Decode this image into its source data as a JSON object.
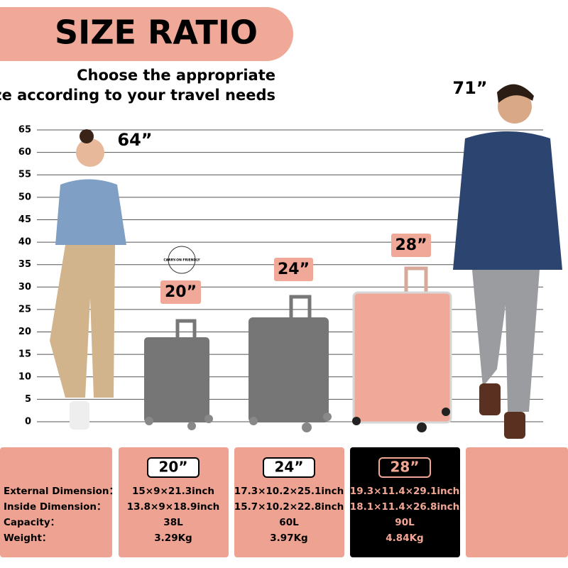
{
  "header": {
    "title": "SIZE RATIO",
    "subtitle": [
      "Choose the appropriate",
      "size according to your travel needs"
    ]
  },
  "scale": [
    65,
    60,
    55,
    50,
    45,
    40,
    35,
    30,
    25,
    20,
    15,
    10,
    5,
    0
  ],
  "people": [
    {
      "height": "64”"
    },
    {
      "height": "71”"
    }
  ],
  "badge": "CARRY-ON FRIENDLY",
  "suitcases": [
    {
      "size": "20”"
    },
    {
      "size": "24”"
    },
    {
      "size": "28”"
    }
  ],
  "table": {
    "row_labels": [
      "External Dimension：",
      "Inside Dimension：",
      "Capacity：",
      "Weight："
    ],
    "columns": [
      {
        "size": "20”",
        "values": [
          "15×9×21.3inch",
          "13.8×9×18.9inch",
          "38L",
          "3.29Kg"
        ]
      },
      {
        "size": "24”",
        "values": [
          "17.3×10.2×25.1inch",
          "15.7×10.2×22.8inch",
          "60L",
          "3.97Kg"
        ]
      },
      {
        "size": "28”",
        "values": [
          "19.3×11.4×29.1inch",
          "18.1×11.4×26.8inch",
          "90L",
          "4.84Kg"
        ]
      }
    ]
  }
}
